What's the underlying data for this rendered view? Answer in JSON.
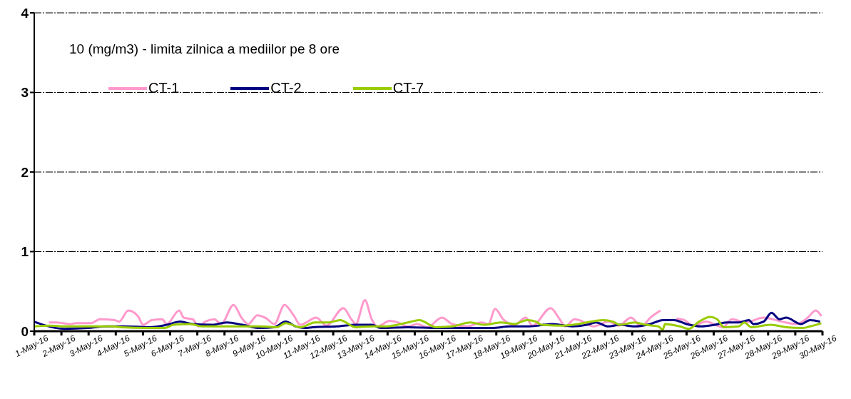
{
  "chart_data": {
    "type": "line",
    "annotations": [
      "10 (mg/m3) - limita zilnica a mediilor pe 8 ore"
    ],
    "xlim": [
      "--05-01",
      "--05-30"
    ],
    "xticks": [
      {
        "value": "--05-01",
        "label": "1-May-16"
      },
      {
        "value": "--05-02",
        "label": "2-May-16"
      },
      {
        "value": "--05-03",
        "label": "3-May-16"
      },
      {
        "value": "--05-04",
        "label": "4-May-16"
      },
      {
        "value": "--05-05",
        "label": "5-May-16"
      },
      {
        "value": "--05-06",
        "label": "6-May-16"
      },
      {
        "value": "--05-07",
        "label": "7-May-16"
      },
      {
        "value": "--05-08",
        "label": "8-May-16"
      },
      {
        "value": "--05-09",
        "label": "9-May-16"
      },
      {
        "value": "--05-10",
        "label": "10-May-16"
      },
      {
        "value": "--05-11",
        "label": "11-May-16"
      },
      {
        "value": "--05-12",
        "label": "12-May-16"
      },
      {
        "value": "--05-13",
        "label": "13-May-16"
      },
      {
        "value": "--05-14",
        "label": "14-May-16"
      },
      {
        "value": "--05-15",
        "label": "15-May-16"
      },
      {
        "value": "--05-16",
        "label": "16-May-16"
      },
      {
        "value": "--05-17",
        "label": "17-May-16"
      },
      {
        "value": "--05-18",
        "label": "18-May-16"
      },
      {
        "value": "--05-19",
        "label": "19-May-16"
      },
      {
        "value": "--05-20",
        "label": "20-May-16"
      },
      {
        "value": "--05-21",
        "label": "21-May-16"
      },
      {
        "value": "--05-22",
        "label": "22-May-16"
      },
      {
        "value": "--05-23",
        "label": "23-May-16"
      },
      {
        "value": "--05-24",
        "label": "24-May-16"
      },
      {
        "value": "--05-25",
        "label": "25-May-16"
      },
      {
        "value": "--05-26",
        "label": "26-May-16"
      },
      {
        "value": "--05-27",
        "label": "27-May-16"
      },
      {
        "value": "--05-28",
        "label": "28-May-16"
      },
      {
        "value": "--05-29",
        "label": "29-May-16"
      },
      {
        "value": "--05-30",
        "label": "30-May-16"
      }
    ],
    "ylim": [
      0,
      4
    ],
    "yticks": [
      0,
      1,
      2,
      3,
      4
    ],
    "grid": "y",
    "legend": "top left",
    "marker": "none",
    "line_style": "solid",
    "series": [
      {
        "name": "CT-1",
        "color": "#ff99cc",
        "x": [
          "--05-01T13:00",
          "--05-01T19:00",
          "--05-02T07:00",
          "--05-02T13:00",
          "--05-03T02:00",
          "--05-03T10:00",
          "--05-03T23:00",
          "--05-04T03:00",
          "--05-04T11:00",
          "--05-04T20:00",
          "--05-05T00:00",
          "--05-05T08:00",
          "--05-05T17:00",
          "--05-05T21:00",
          "--05-06T08:00",
          "--05-06T12:00",
          "--05-06T20:00",
          "--05-07T01:00",
          "--05-07T07:00",
          "--05-07T15:00",
          "--05-07T21:00",
          "--05-08T08:00",
          "--05-08T15:00",
          "--05-08T21:00",
          "--05-09T05:00",
          "--05-09T13:00",
          "--05-09T20:00",
          "--05-10T05:00",
          "--05-10T13:00",
          "--05-10T19:00",
          "--05-11T09:00",
          "--05-11T18:00",
          "--05-12T09:00",
          "--05-12T16:00",
          "--05-12T20:00",
          "--05-13T04:00",
          "--05-13T10:00",
          "--05-13T15:00",
          "--05-14T02:00",
          "--05-14T09:00",
          "--05-14T18:00",
          "--05-15T02:00",
          "--05-15T11:00",
          "--05-16T00:00",
          "--05-16T09:00",
          "--05-16T22:00",
          "--05-17T11:00",
          "--05-17T17:00",
          "--05-17T23:00",
          "--05-18T06:00",
          "--05-18T16:00",
          "--05-19T02:00",
          "--05-19T08:00",
          "--05-20T00:00",
          "--05-20T08:00",
          "--05-20T13:00",
          "--05-20T21:00",
          "--05-21T01:00",
          "--05-21T14:00",
          "--05-22T03:00",
          "--05-22T12:00",
          "--05-22T23:00",
          "--05-23T08:00",
          "--05-23T16:00",
          "--05-24T01:00",
          "--05-24T07:00",
          "--05-24T15:00",
          "--05-24T22:00",
          "--05-25T06:00",
          "--05-25T17:00",
          "--05-26T08:00",
          "--05-26T16:00",
          "--05-27T04:00",
          "--05-27T20:00",
          "--05-28T12:00",
          "--05-29T01:00",
          "--05-29T11:00",
          "--05-29T18:00",
          "--05-29T23:00"
        ],
        "values": [
          0.11,
          0.11,
          0.09,
          0.1,
          0.1,
          0.15,
          0.14,
          0.12,
          0.26,
          0.18,
          0.08,
          0.14,
          0.15,
          0.09,
          0.26,
          0.17,
          0.15,
          0.06,
          0.12,
          0.15,
          0.09,
          0.33,
          0.17,
          0.09,
          0.2,
          0.16,
          0.09,
          0.33,
          0.2,
          0.08,
          0.17,
          0.07,
          0.29,
          0.15,
          0.09,
          0.39,
          0.15,
          0.06,
          0.13,
          0.11,
          0.06,
          0.09,
          0.05,
          0.17,
          0.09,
          0.06,
          0.11,
          0.09,
          0.28,
          0.15,
          0.08,
          0.17,
          0.07,
          0.29,
          0.15,
          0.06,
          0.15,
          0.14,
          0.06,
          0.12,
          0.07,
          0.17,
          0.06,
          0.17,
          0.26,
          null,
          0.16,
          0.14,
          0.07,
          0.12,
          0.05,
          0.15,
          0.11,
          0.17,
          0.12,
          0.09,
          0.17,
          0.26,
          0.19
        ]
      },
      {
        "name": "CT-2",
        "color": "#000080",
        "x": [
          "--05-01T00:00",
          "--05-01T08:00",
          "--05-02T03:00",
          "--05-02T23:00",
          "--05-03T15:00",
          "--05-04T07:00",
          "--05-05T06:00",
          "--05-05T21:00",
          "--05-06T09:00",
          "--05-06T20:00",
          "--05-07T13:00",
          "--05-08T02:00",
          "--05-08T16:00",
          "--05-09T07:00",
          "--05-09T20:00",
          "--05-10T06:00",
          "--05-10T15:00",
          "--05-10T23:00",
          "--05-11T06:00",
          "--05-12T03:00",
          "--05-12T20:00",
          "--05-13T10:00",
          "--05-13T18:00",
          "--05-14T18:00",
          "--05-15T21:00",
          "--05-16T22:00",
          "--05-17T20:00",
          "--05-18T12:00",
          "--05-19T05:00",
          "--05-20T02:00",
          "--05-20T19:00",
          "--05-21T08:00",
          "--05-21T16:00",
          "--05-22T03:00",
          "--05-22T13:00",
          "--05-23T02:00",
          "--05-23T16:00",
          "--05-24T03:00",
          "--05-24T13:00",
          "--05-25T00:00",
          "--05-25T13:00",
          "--05-26T01:00",
          "--05-26T12:00",
          "--05-26T22:00",
          "--05-27T07:00",
          "--05-27T11:00",
          "--05-27T20:00",
          "--05-28T03:00",
          "--05-28T10:00",
          "--05-28T16:00",
          "--05-29T05:00",
          "--05-29T13:00",
          "--05-29T22:00"
        ],
        "values": [
          0.12,
          0.08,
          0.03,
          0.04,
          0.06,
          0.06,
          0.05,
          0.08,
          0.12,
          0.09,
          0.08,
          0.11,
          0.08,
          0.04,
          0.05,
          0.12,
          0.06,
          0.04,
          0.05,
          0.06,
          0.08,
          0.08,
          0.04,
          0.05,
          0.04,
          0.04,
          0.04,
          0.06,
          0.06,
          0.09,
          0.06,
          0.08,
          0.11,
          0.06,
          0.08,
          0.06,
          0.09,
          0.14,
          0.14,
          0.09,
          0.06,
          0.08,
          0.11,
          0.11,
          0.14,
          0.09,
          0.12,
          0.23,
          0.15,
          0.17,
          0.09,
          0.14,
          0.12
        ]
      },
      {
        "name": "CT-7",
        "color": "#99cc00",
        "x": [
          "--05-01T00:00",
          "--05-01T14:00",
          "--05-02T03:00",
          "--05-03T04:00",
          "--05-03T21:00",
          "--05-04T05:00",
          "--05-05T06:00",
          "--05-05T19:00",
          "--05-06T03:00",
          "--05-06T18:00",
          "--05-07T04:00",
          "--05-08T02:00",
          "--05-09T07:00",
          "--05-09T22:00",
          "--05-10T06:00",
          "--05-10T19:00",
          "--05-11T08:00",
          "--05-11T20:00",
          "--05-12T06:00",
          "--05-12T20:00",
          "--05-13T10:00",
          "--05-13T23:00",
          "--05-14T18:00",
          "--05-15T04:00",
          "--05-15T19:00",
          "--05-16T09:00",
          "--05-17T01:00",
          "--05-17T13:00",
          "--05-18T04:00",
          "--05-18T16:00",
          "--05-19T03:00",
          "--05-19T11:00",
          "--05-19T16:00",
          "--05-20T11:00",
          "--05-21T08:00",
          "--05-21T22:00",
          "--05-22T07:00",
          "--05-22T13:00",
          "--05-23T02:00",
          "--05-23T12:00",
          "--05-23T23:00",
          "--05-24T03:00",
          "--05-24T05:00",
          "--05-24T18:00",
          "--05-25T02:00",
          "--05-25T11:00",
          "--05-25T21:00",
          "--05-26T03:00",
          "--05-26T09:00",
          "--05-26T22:00",
          "--05-27T03:00",
          "--05-27T09:00",
          "--05-28T02:00",
          "--05-28T16:00",
          "--05-29T07:00",
          "--05-29T13:00",
          "--05-29T23:00"
        ],
        "values": [
          0.06,
          0.07,
          0.06,
          0.06,
          0.06,
          0.05,
          0.04,
          0.04,
          0.08,
          0.09,
          0.06,
          0.06,
          0.06,
          0.05,
          0.1,
          0.05,
          0.11,
          0.11,
          0.14,
          0.05,
          0.06,
          0.06,
          0.11,
          0.14,
          0.05,
          0.06,
          0.11,
          0.08,
          0.11,
          0.09,
          0.14,
          0.12,
          0.08,
          0.07,
          0.11,
          0.14,
          0.12,
          0.08,
          0.11,
          0.08,
          0.06,
          0.02,
          0.09,
          0.06,
          0.03,
          0.12,
          0.18,
          0.15,
          0.05,
          0.06,
          0.11,
          0.05,
          0.08,
          0.05,
          0.04,
          0.06,
          0.1
        ]
      }
    ]
  }
}
